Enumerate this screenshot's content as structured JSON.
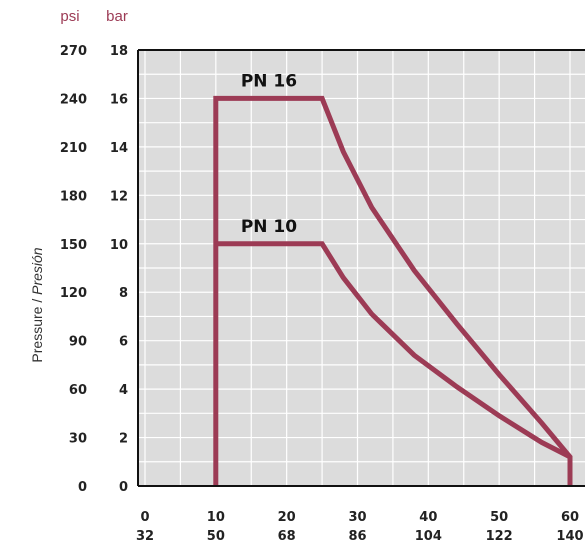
{
  "chart_data": {
    "type": "line",
    "units": {
      "psi": "psi",
      "bar": "bar"
    },
    "ylabel": {
      "main": "Pressure",
      "separator": " / ",
      "alt": "Presión"
    },
    "y_ticks_psi": [
      "0",
      "30",
      "60",
      "90",
      "120",
      "150",
      "180",
      "210",
      "240",
      "270"
    ],
    "y_ticks_bar": [
      "0",
      "2",
      "4",
      "6",
      "8",
      "10",
      "12",
      "14",
      "16",
      "18"
    ],
    "x_ticks_c": [
      "0",
      "10",
      "20",
      "30",
      "40",
      "50",
      "60"
    ],
    "x_ticks_f": [
      "32",
      "50",
      "68",
      "86",
      "104",
      "122",
      "140"
    ],
    "xlim": [
      0,
      60
    ],
    "ylim": [
      0,
      18
    ],
    "grid": true,
    "line_color": "#9c3b55",
    "plot_bg": "#dcdcdc",
    "series": [
      {
        "name": "PN 16",
        "points": [
          [
            10,
            0
          ],
          [
            10,
            16
          ],
          [
            25,
            16
          ],
          [
            28,
            13.8
          ],
          [
            32,
            11.5
          ],
          [
            38,
            8.9
          ],
          [
            44,
            6.7
          ],
          [
            50,
            4.6
          ],
          [
            56,
            2.6
          ],
          [
            60,
            1.2
          ],
          [
            60,
            0
          ]
        ]
      },
      {
        "name": "PN 10",
        "points": [
          [
            10,
            10
          ],
          [
            25,
            10
          ],
          [
            28,
            8.6
          ],
          [
            32,
            7.1
          ],
          [
            38,
            5.4
          ],
          [
            44,
            4.1
          ],
          [
            50,
            2.9
          ],
          [
            56,
            1.8
          ],
          [
            60,
            1.2
          ]
        ]
      }
    ],
    "annotations": [
      {
        "text": "PN 16",
        "x": 17.5,
        "y": 16
      },
      {
        "text": "PN 10",
        "x": 17.5,
        "y": 10
      }
    ]
  }
}
